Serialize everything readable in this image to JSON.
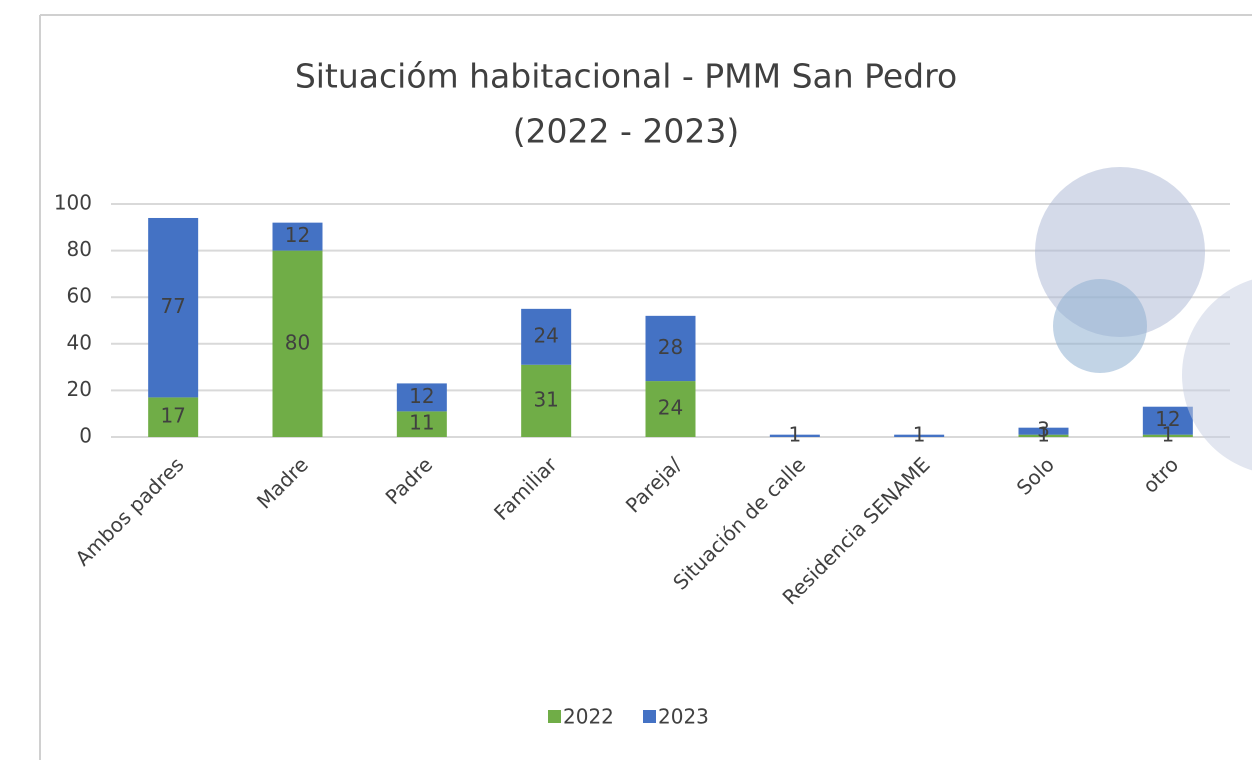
{
  "chart_data": {
    "type": "stacked_bar",
    "title": [
      "Situacióm habitacional - PMM San Pedro",
      "(2022 - 2023)"
    ],
    "categories": [
      "Ambos padres",
      "Madre",
      "Padre",
      "Familiar",
      "Pareja/",
      "Situación de calle",
      "Residencia SENAME",
      "Solo",
      "otro"
    ],
    "series": [
      {
        "name": "2022",
        "color": "#70ad47",
        "values": [
          17,
          80,
          11,
          31,
          24,
          null,
          null,
          1,
          1
        ]
      },
      {
        "name": "2023",
        "color": "#4472c4",
        "values": [
          77,
          12,
          12,
          24,
          28,
          1,
          1,
          3,
          12
        ]
      }
    ],
    "ylim": [
      0,
      100
    ],
    "yticks": [
      0,
      20,
      40,
      60,
      80,
      100
    ],
    "grid": true,
    "legend": "bottom"
  }
}
